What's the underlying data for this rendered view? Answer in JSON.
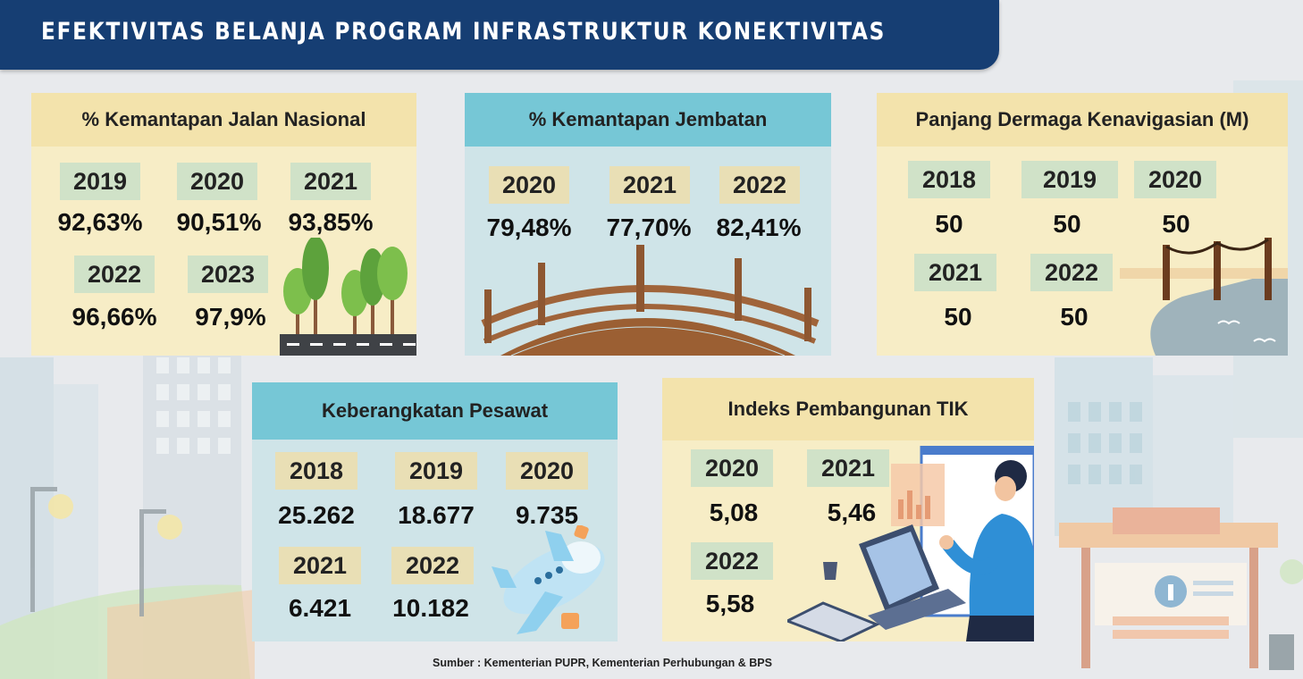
{
  "title": "EFEKTIVITAS BELANJA PROGRAM INFRASTRUKTUR KONEKTIVITAS",
  "cards": {
    "jalan": {
      "title": "% Kemantapan Jalan Nasional",
      "items": [
        {
          "year": "2019",
          "value": "92,63%"
        },
        {
          "year": "2020",
          "value": "90,51%"
        },
        {
          "year": "2021",
          "value": "93,85%"
        },
        {
          "year": "2022",
          "value": "96,66%"
        },
        {
          "year": "2023",
          "value": "97,9%"
        }
      ]
    },
    "jembatan": {
      "title": "% Kemantapan Jembatan",
      "items": [
        {
          "year": "2020",
          "value": "79,48%"
        },
        {
          "year": "2021",
          "value": "77,70%"
        },
        {
          "year": "2022",
          "value": "82,41%"
        }
      ]
    },
    "dermaga": {
      "title": "Panjang Dermaga Kenavigasian (M)",
      "items": [
        {
          "year": "2018",
          "value": "50"
        },
        {
          "year": "2019",
          "value": "50"
        },
        {
          "year": "2020",
          "value": "50"
        },
        {
          "year": "2021",
          "value": "50"
        },
        {
          "year": "2022",
          "value": "50"
        }
      ]
    },
    "pesawat": {
      "title": "Keberangkatan Pesawat",
      "items": [
        {
          "year": "2018",
          "value": "25.262"
        },
        {
          "year": "2019",
          "value": "18.677"
        },
        {
          "year": "2020",
          "value": "9.735"
        },
        {
          "year": "2021",
          "value": "6.421"
        },
        {
          "year": "2022",
          "value": "10.182"
        }
      ]
    },
    "tik": {
      "title": "Indeks Pembangunan TIK",
      "items": [
        {
          "year": "2020",
          "value": "5,08"
        },
        {
          "year": "2021",
          "value": "5,46"
        },
        {
          "year": "2022",
          "value": "5,58"
        }
      ]
    }
  },
  "source": "Sumber : Kementerian PUPR, Kementerian Perhubungan & BPS",
  "colors": {
    "title_bar": "#163e73",
    "card_cream": "#f7edc6",
    "card_blue": "#cfe4e8",
    "header_cream": "#f3e3ac",
    "header_blue": "#76c7d6",
    "year_green": "#d0e2c8",
    "year_tan": "#e9dfb5"
  },
  "icons": [
    "trees-road-illustration",
    "bridge-illustration",
    "pier-illustration",
    "airplane-illustration",
    "laptop-person-illustration",
    "city-background-illustration",
    "bus-stop-illustration"
  ]
}
